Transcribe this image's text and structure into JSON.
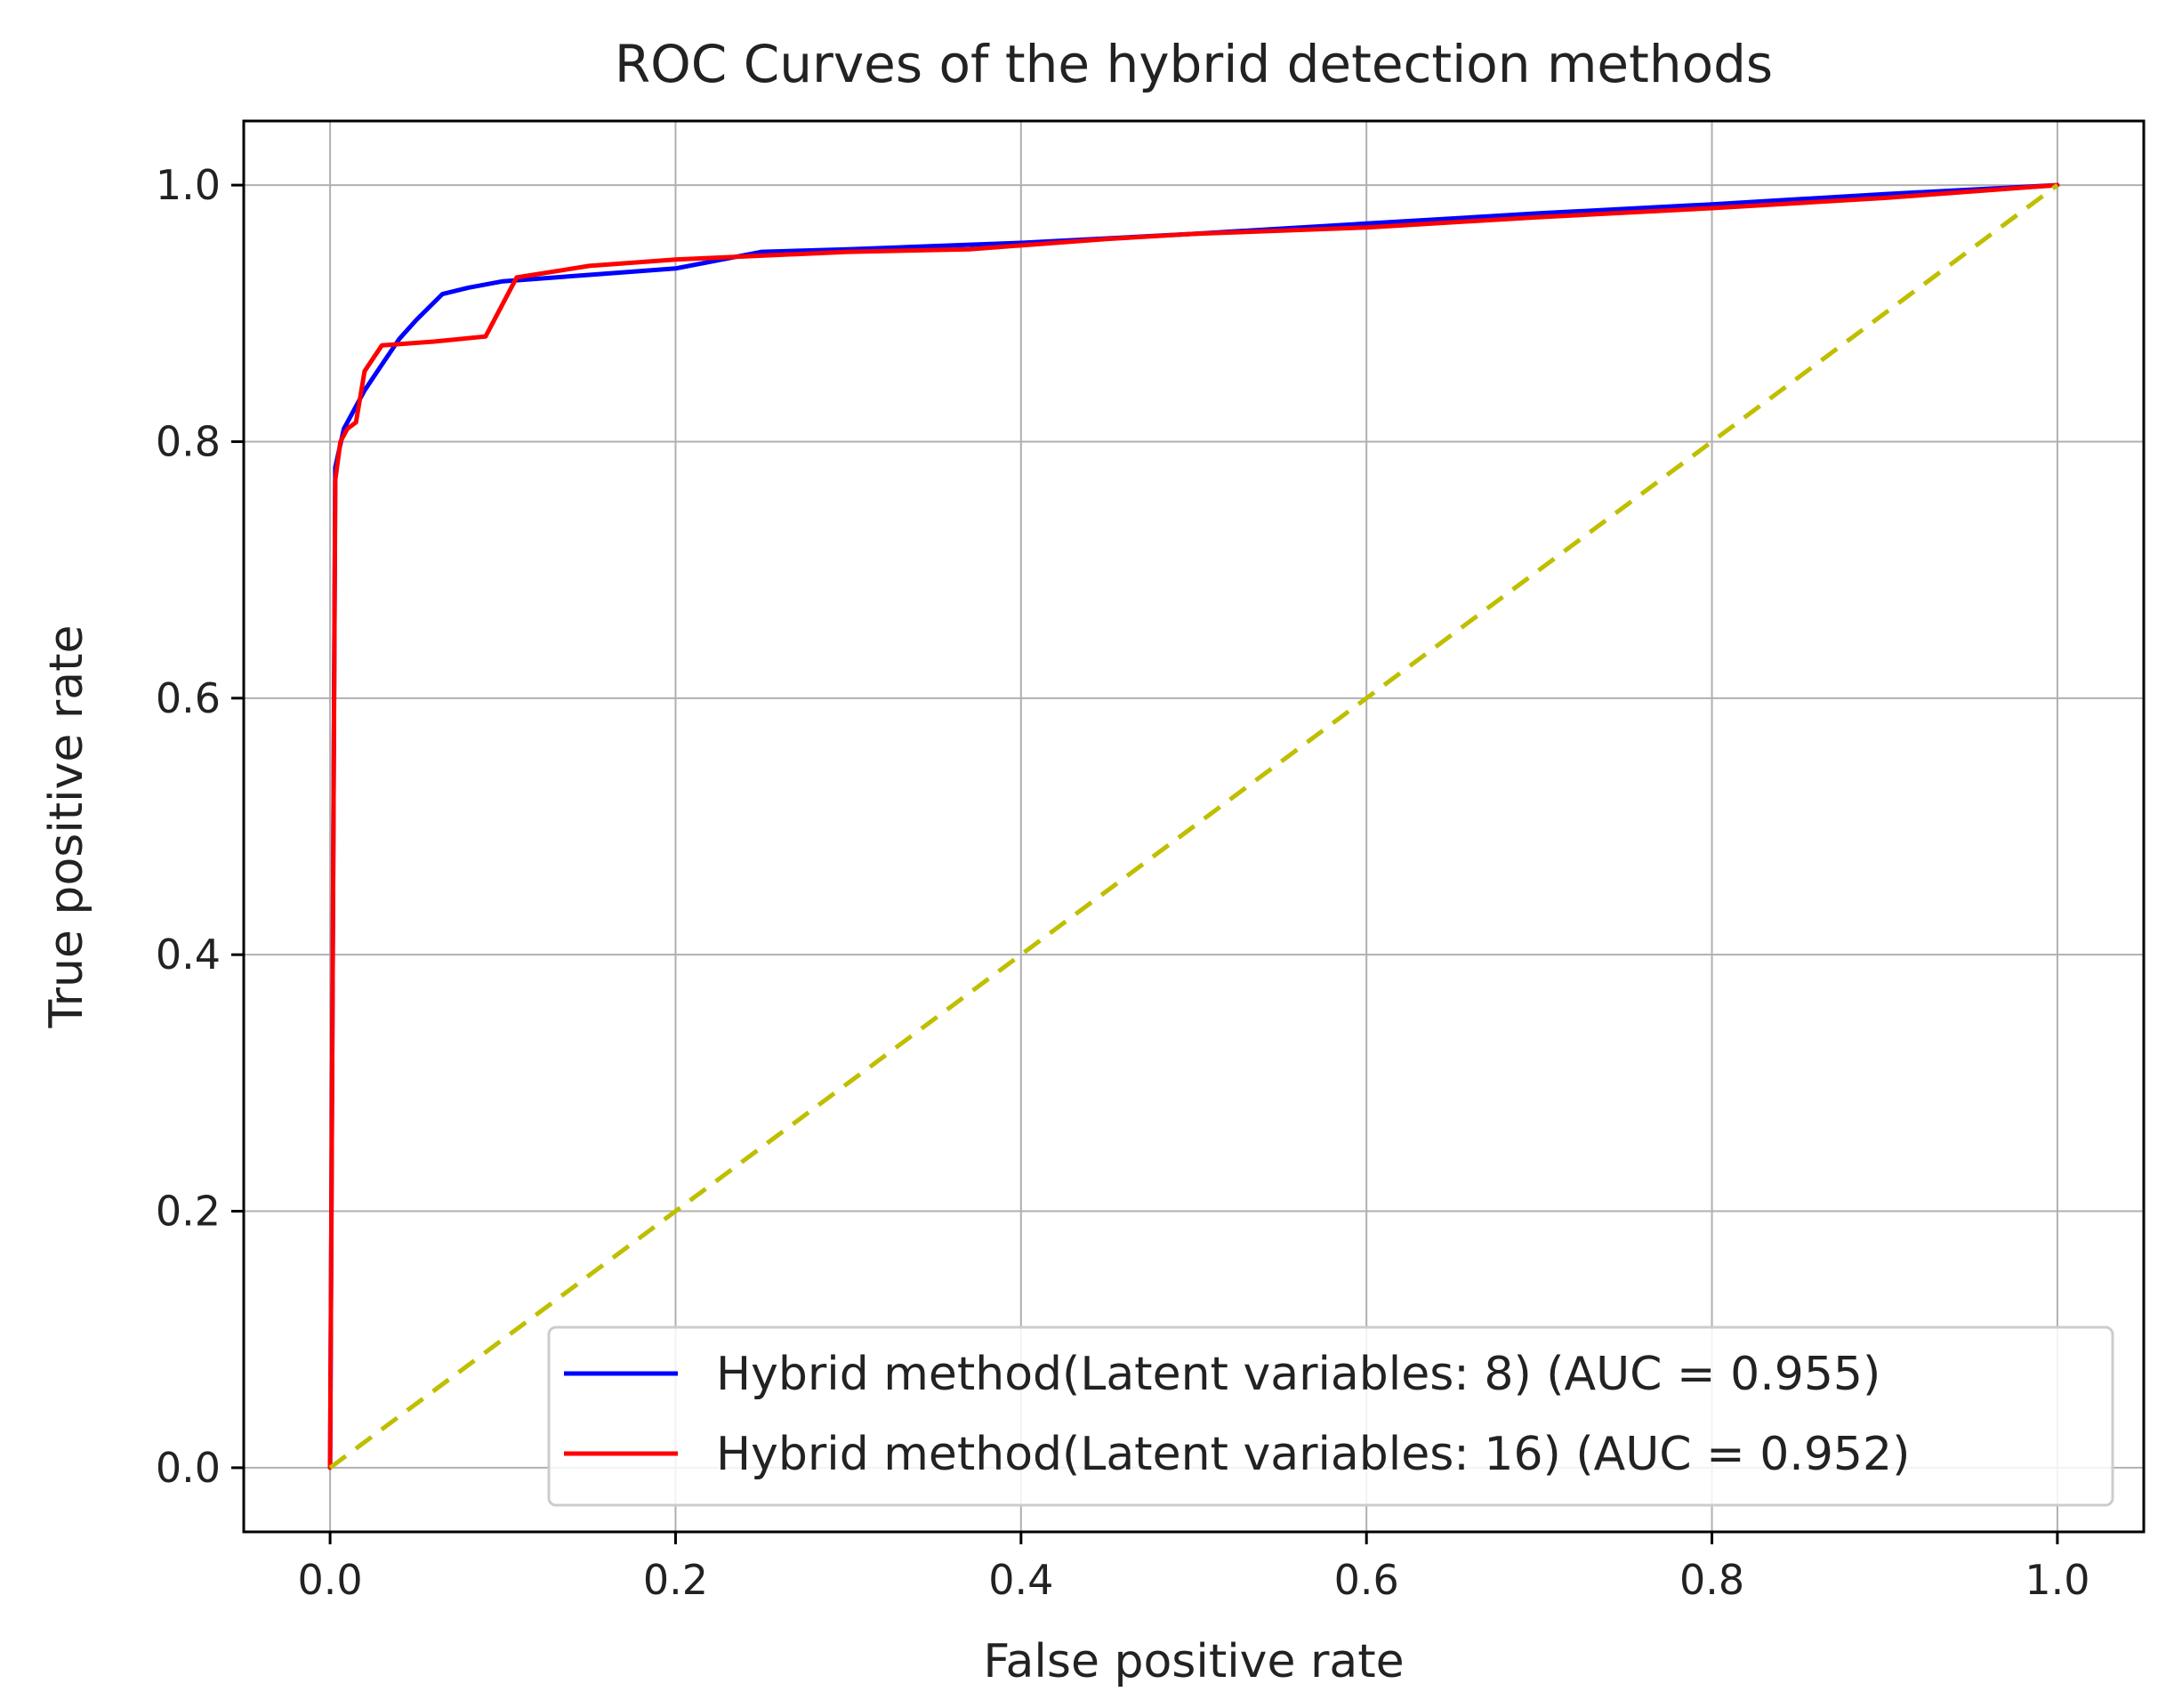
{
  "chart_data": {
    "type": "line",
    "title": "ROC Curves of the hybrid detection methods",
    "xlabel": "False positive rate",
    "ylabel": "True positive rate",
    "xlim": [
      -0.05,
      1.05
    ],
    "ylim": [
      -0.05,
      1.05
    ],
    "xticks": [
      0.0,
      0.2,
      0.4,
      0.6,
      0.8,
      1.0
    ],
    "yticks": [
      0.0,
      0.2,
      0.4,
      0.6,
      0.8,
      1.0
    ],
    "xtick_labels": [
      "0.0",
      "0.2",
      "0.4",
      "0.6",
      "0.8",
      "1.0"
    ],
    "ytick_labels": [
      "0.0",
      "0.2",
      "0.4",
      "0.6",
      "0.8",
      "1.0"
    ],
    "grid": true,
    "legend_position": "lower-right",
    "series": [
      {
        "name": "Hybrid method(Latent variables: 8) (AUC = 0.955)",
        "color": "#0000ff",
        "x": [
          0.0,
          0.003,
          0.008,
          0.012,
          0.02,
          0.03,
          0.04,
          0.05,
          0.065,
          0.08,
          0.1,
          0.15,
          0.2,
          0.25,
          0.3,
          0.4,
          0.5,
          0.6,
          0.7,
          0.8,
          0.9,
          1.0
        ],
        "y": [
          0.0,
          0.78,
          0.81,
          0.82,
          0.84,
          0.86,
          0.88,
          0.895,
          0.915,
          0.92,
          0.925,
          0.93,
          0.935,
          0.948,
          0.95,
          0.955,
          0.962,
          0.97,
          0.978,
          0.985,
          0.993,
          1.0
        ]
      },
      {
        "name": "Hybrid method(Latent variables: 16) (AUC = 0.952)",
        "color": "#ff0000",
        "x": [
          0.0,
          0.003,
          0.006,
          0.01,
          0.015,
          0.02,
          0.025,
          0.03,
          0.06,
          0.09,
          0.108,
          0.15,
          0.2,
          0.25,
          0.3,
          0.37,
          0.45,
          0.5,
          0.6,
          0.7,
          0.8,
          0.9,
          1.0
        ],
        "y": [
          0.0,
          0.77,
          0.8,
          0.81,
          0.815,
          0.855,
          0.865,
          0.875,
          0.878,
          0.882,
          0.928,
          0.937,
          0.942,
          0.945,
          0.948,
          0.95,
          0.958,
          0.962,
          0.967,
          0.975,
          0.982,
          0.99,
          1.0
        ]
      },
      {
        "name": "",
        "color": "#bfbf00",
        "dashed": true,
        "x": [
          0.0,
          1.0
        ],
        "y": [
          0.0,
          1.0
        ]
      }
    ]
  }
}
